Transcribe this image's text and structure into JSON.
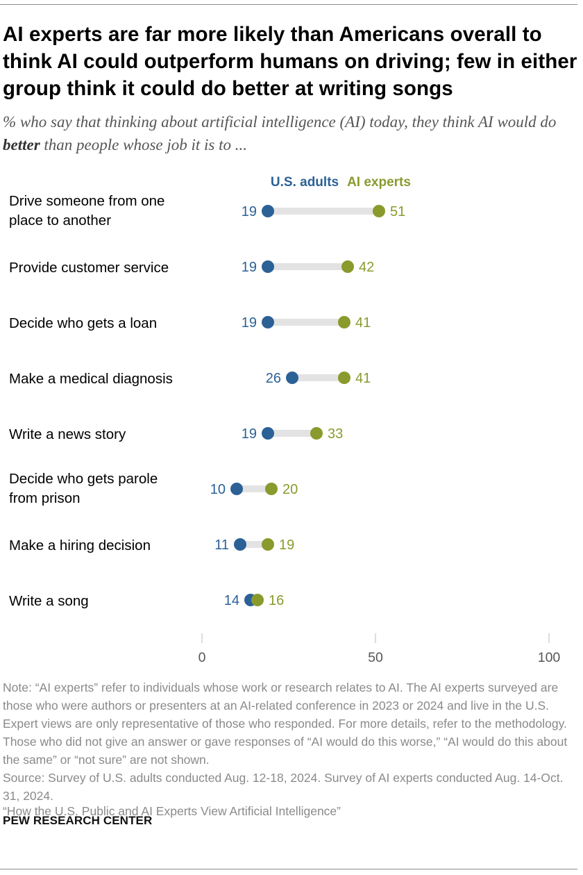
{
  "title": "AI experts are far more likely than Americans overall to think AI could outperform humans on driving; few in either group think it could do better at writing songs",
  "subtitle_before": "% who say that thinking about artificial intelligence (AI) today, they think AI would do ",
  "subtitle_bold": "better",
  "subtitle_after": " than people whose job it is to ...",
  "colors": {
    "us_adults": "#2c6196",
    "ai_experts": "#8a9a2d",
    "connector": "#e3e3e3",
    "tick": "#bbbbbb"
  },
  "chart_data": {
    "type": "dot-plot",
    "xlim": [
      0,
      100
    ],
    "x_ticks": [
      "0",
      "50",
      "100"
    ],
    "series": [
      {
        "name": "U.S. adults",
        "values": [
          19,
          19,
          19,
          26,
          19,
          10,
          11,
          14
        ]
      },
      {
        "name": "AI experts",
        "values": [
          51,
          42,
          41,
          41,
          33,
          20,
          19,
          16
        ]
      }
    ],
    "categories": [
      [
        "Drive someone from one",
        "place to another"
      ],
      [
        "Provide customer service"
      ],
      [
        "Decide who gets a loan"
      ],
      [
        "Make a medical diagnosis"
      ],
      [
        "Write a news story"
      ],
      [
        "Decide who gets parole",
        "from prison"
      ],
      [
        "Make a hiring decision"
      ],
      [
        "Write a song"
      ]
    ]
  },
  "note": "Note: “AI experts” refer to individuals whose work or research relates to AI. The AI experts surveyed are those who were authors or presenters at an AI-related conference in 2023 or 2024 and live in the U.S. Expert views are only representative of those who responded. For more details, refer to the methodology. Those who did not give an answer or gave responses of “AI would do this worse,” “AI would do this about the same” or “not sure” are not shown.",
  "source": "Source: Survey of U.S. adults conducted Aug. 12-18, 2024. Survey of AI experts conducted Aug. 14-Oct. 31, 2024.",
  "report": "“How the U.S. Public and AI Experts View Artificial Intelligence”",
  "brand": "PEW RESEARCH CENTER"
}
